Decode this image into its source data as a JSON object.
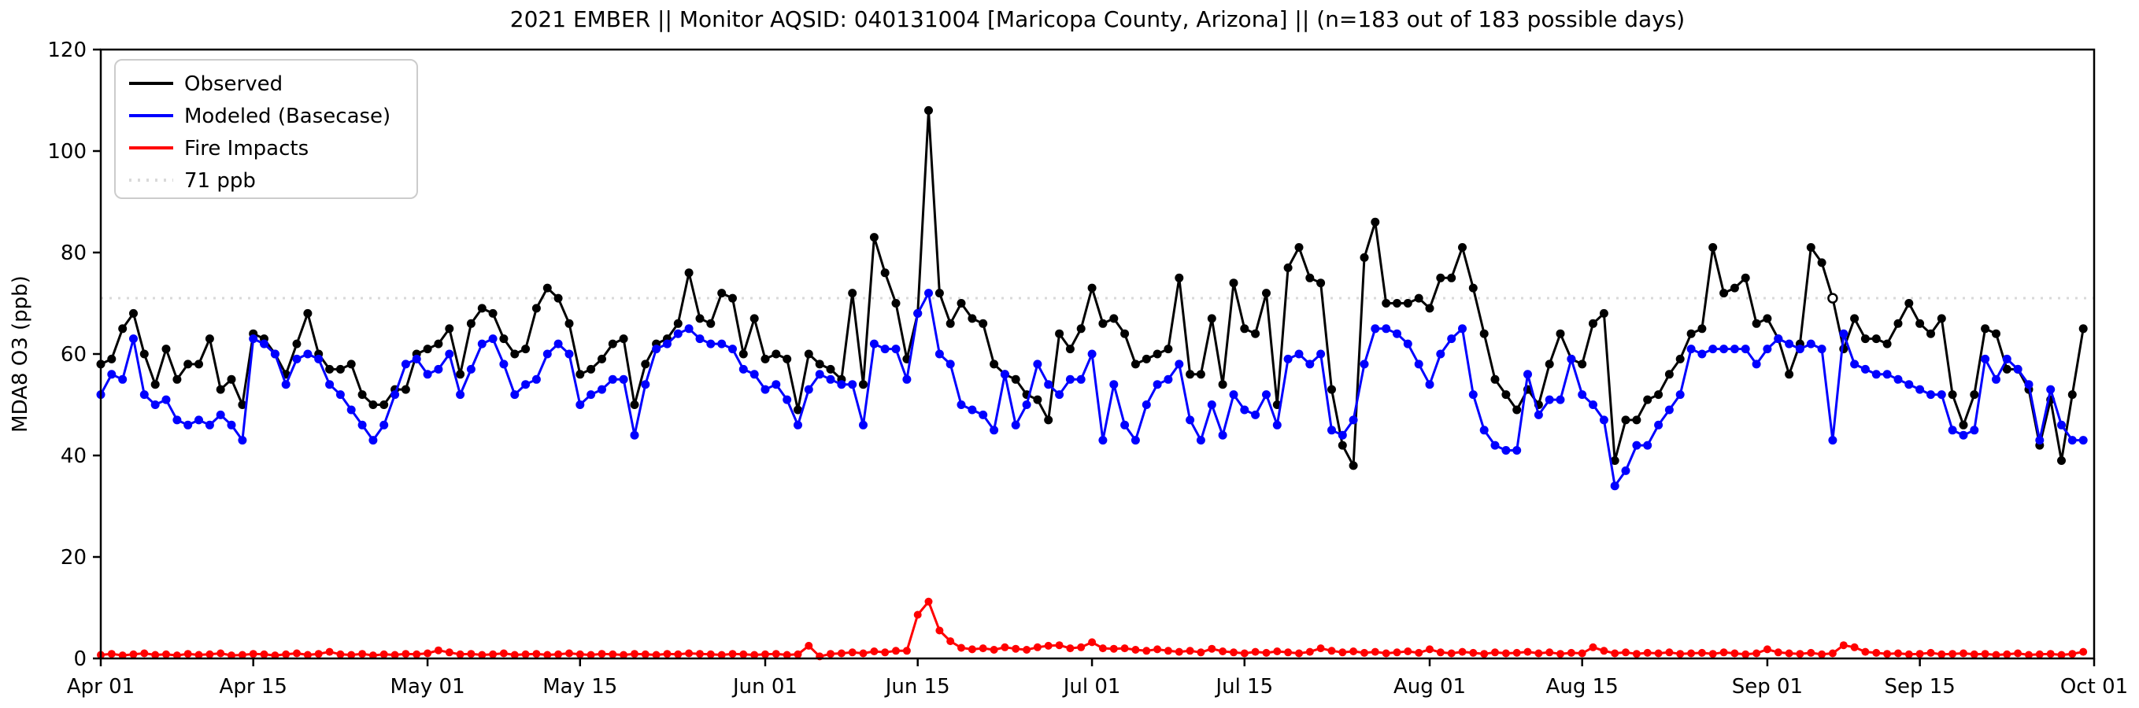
{
  "title": "2021 EMBER || Monitor AQSID: 040131004 [Maricopa County, Arizona] || (n=183 out of 183 possible days)",
  "chart_data": {
    "type": "line",
    "title": "2021 EMBER || Monitor AQSID: 040131004 [Maricopa County, Arizona] || (n=183 out of 183 possible days)",
    "xlabel": "",
    "ylabel": "MDA8 O3 (ppb)",
    "ylim": [
      0,
      120
    ],
    "yticks": [
      0,
      20,
      40,
      60,
      80,
      100,
      120
    ],
    "x_total_days": 183,
    "xticks": [
      {
        "day": 0,
        "label": "Apr 01"
      },
      {
        "day": 14,
        "label": "Apr 15"
      },
      {
        "day": 30,
        "label": "May 01"
      },
      {
        "day": 44,
        "label": "May 15"
      },
      {
        "day": 61,
        "label": "Jun 01"
      },
      {
        "day": 75,
        "label": "Jun 15"
      },
      {
        "day": 91,
        "label": "Jul 01"
      },
      {
        "day": 105,
        "label": "Jul 15"
      },
      {
        "day": 122,
        "label": "Aug 01"
      },
      {
        "day": 136,
        "label": "Aug 15"
      },
      {
        "day": 153,
        "label": "Sep 01"
      },
      {
        "day": 167,
        "label": "Sep 15"
      },
      {
        "day": 183,
        "label": "Oct 01"
      }
    ],
    "grid": false,
    "legend_position": "upper-left",
    "threshold": {
      "value": 71,
      "label": "71 ppb",
      "color": "#d9d9d9"
    },
    "legend": [
      {
        "label": "Observed",
        "color": "#000000",
        "style": "solid"
      },
      {
        "label": "Modeled (Basecase)",
        "color": "#0000ff",
        "style": "solid"
      },
      {
        "label": "Fire Impacts",
        "color": "#ff0000",
        "style": "solid"
      },
      {
        "label": "71 ppb",
        "color": "#d9d9d9",
        "style": "dotted"
      }
    ],
    "open_marker": {
      "series": "Observed",
      "index": 159
    },
    "series": [
      {
        "name": "Observed",
        "color": "#000000",
        "values": [
          58,
          59,
          65,
          68,
          60,
          54,
          61,
          55,
          58,
          58,
          63,
          53,
          55,
          50,
          64,
          63,
          60,
          56,
          62,
          68,
          60,
          57,
          57,
          58,
          52,
          50,
          50,
          53,
          53,
          60,
          61,
          62,
          65,
          56,
          66,
          69,
          68,
          63,
          60,
          61,
          69,
          73,
          71,
          66,
          56,
          57,
          59,
          62,
          63,
          50,
          58,
          62,
          63,
          66,
          76,
          67,
          66,
          72,
          71,
          60,
          67,
          59,
          60,
          59,
          49,
          60,
          58,
          57,
          55,
          72,
          54,
          83,
          76,
          70,
          59,
          68,
          108,
          72,
          66,
          70,
          67,
          66,
          58,
          56,
          55,
          52,
          51,
          47,
          64,
          61,
          65,
          73,
          66,
          67,
          64,
          58,
          59,
          60,
          61,
          75,
          56,
          56,
          67,
          54,
          74,
          65,
          64,
          72,
          50,
          77,
          81,
          75,
          74,
          53,
          42,
          38,
          79,
          86,
          70,
          70,
          70,
          71,
          69,
          75,
          75,
          81,
          73,
          64,
          55,
          52,
          49,
          53,
          50,
          58,
          64,
          59,
          58,
          66,
          68,
          39,
          47,
          47,
          51,
          52,
          56,
          59,
          64,
          65,
          81,
          72,
          73,
          75,
          66,
          67,
          63,
          56,
          62,
          81,
          78,
          71,
          61,
          67,
          63,
          63,
          62,
          66,
          70,
          66,
          64,
          67,
          52,
          46,
          52,
          65,
          64,
          57,
          57,
          53,
          42,
          51,
          39,
          52,
          65
        ]
      },
      {
        "name": "Modeled (Basecase)",
        "color": "#0000ff",
        "values": [
          52,
          56,
          55,
          63,
          52,
          50,
          51,
          47,
          46,
          47,
          46,
          48,
          46,
          43,
          63,
          62,
          60,
          54,
          59,
          60,
          59,
          54,
          52,
          49,
          46,
          43,
          46,
          52,
          58,
          59,
          56,
          57,
          60,
          52,
          57,
          62,
          63,
          58,
          52,
          54,
          55,
          60,
          62,
          60,
          50,
          52,
          53,
          55,
          55,
          44,
          54,
          61,
          62,
          64,
          65,
          63,
          62,
          62,
          61,
          57,
          56,
          53,
          54,
          51,
          46,
          53,
          56,
          55,
          54,
          54,
          46,
          62,
          61,
          61,
          55,
          68,
          72,
          60,
          58,
          50,
          49,
          48,
          45,
          56,
          46,
          50,
          58,
          54,
          52,
          55,
          55,
          60,
          43,
          54,
          46,
          43,
          50,
          54,
          55,
          58,
          47,
          43,
          50,
          44,
          52,
          49,
          48,
          52,
          46,
          59,
          60,
          58,
          60,
          45,
          44,
          47,
          58,
          65,
          65,
          64,
          62,
          58,
          54,
          60,
          63,
          65,
          52,
          45,
          42,
          41,
          41,
          56,
          48,
          51,
          51,
          59,
          52,
          50,
          47,
          34,
          37,
          42,
          42,
          46,
          49,
          52,
          61,
          60,
          61,
          61,
          61,
          61,
          58,
          61,
          63,
          62,
          61,
          62,
          61,
          43,
          64,
          58,
          57,
          56,
          56,
          55,
          54,
          53,
          52,
          52,
          45,
          44,
          45,
          59,
          55,
          59,
          57,
          54,
          43,
          53,
          46,
          43,
          43
        ]
      },
      {
        "name": "Fire Impacts",
        "color": "#ff0000",
        "values": [
          0.7,
          0.9,
          0.6,
          0.8,
          1.0,
          0.7,
          0.8,
          0.6,
          0.9,
          0.7,
          0.8,
          1.0,
          0.6,
          0.7,
          0.9,
          0.8,
          0.6,
          0.8,
          1.0,
          0.7,
          0.9,
          1.3,
          0.8,
          0.7,
          0.9,
          0.6,
          0.8,
          0.7,
          0.9,
          0.8,
          1.0,
          1.6,
          1.2,
          0.8,
          0.9,
          0.7,
          0.8,
          1.0,
          0.7,
          0.8,
          0.9,
          0.7,
          0.8,
          1.0,
          0.8,
          0.7,
          0.9,
          0.8,
          0.7,
          0.9,
          0.8,
          0.7,
          0.9,
          0.8,
          1.0,
          0.9,
          0.8,
          0.7,
          0.9,
          0.8,
          0.7,
          0.8,
          0.9,
          0.7,
          0.8,
          2.5,
          0.4,
          0.9,
          1.0,
          1.2,
          1.0,
          1.4,
          1.2,
          1.5,
          1.5,
          8.6,
          11.2,
          5.5,
          3.4,
          2.1,
          1.8,
          2.0,
          1.7,
          2.2,
          1.9,
          1.7,
          2.2,
          2.5,
          2.6,
          2.0,
          2.2,
          3.2,
          2.0,
          1.9,
          2.0,
          1.7,
          1.5,
          1.8,
          1.5,
          1.3,
          1.5,
          1.2,
          1.9,
          1.4,
          1.2,
          1.0,
          1.3,
          1.1,
          1.4,
          1.2,
          1.0,
          1.3,
          2.0,
          1.5,
          1.2,
          1.4,
          1.1,
          1.3,
          1.0,
          1.2,
          1.4,
          1.1,
          1.8,
          1.2,
          1.0,
          1.3,
          1.1,
          0.9,
          1.2,
          1.0,
          1.1,
          1.3,
          1.0,
          1.2,
          0.9,
          1.1,
          1.0,
          2.2,
          1.5,
          1.0,
          1.2,
          0.9,
          1.1,
          1.0,
          1.2,
          0.9,
          1.0,
          1.1,
          0.9,
          1.2,
          1.0,
          0.8,
          1.0,
          1.8,
          1.2,
          1.0,
          0.9,
          1.1,
          0.8,
          1.0,
          2.6,
          2.2,
          1.3,
          1.1,
          0.9,
          1.0,
          0.8,
          0.9,
          1.1,
          0.8,
          0.9,
          1.0,
          0.8,
          0.9,
          0.7,
          0.8,
          1.0,
          0.7,
          0.8,
          0.9,
          0.7,
          0.9,
          1.3
        ]
      }
    ]
  }
}
